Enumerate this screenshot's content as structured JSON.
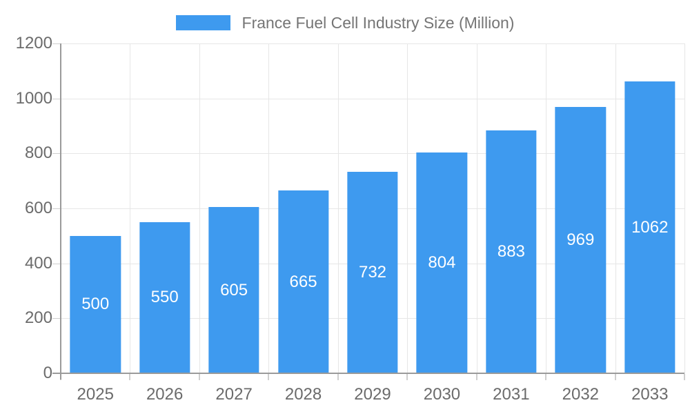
{
  "chart_data": {
    "type": "bar",
    "title": "France Fuel Cell Industry Size (Million)",
    "categories": [
      "2025",
      "2026",
      "2027",
      "2028",
      "2029",
      "2030",
      "2031",
      "2032",
      "2033"
    ],
    "values": [
      500,
      550,
      605,
      665,
      732,
      804,
      883,
      969,
      1062
    ],
    "xlabel": "",
    "ylabel": "",
    "ylim": [
      0,
      1200
    ],
    "yticks": [
      0,
      200,
      400,
      600,
      800,
      1000,
      1200
    ],
    "grid": true,
    "legend_position": "top",
    "value_labels": "inside-center",
    "bar_width_fraction": 0.73
  },
  "colors": {
    "bar": "#3E9AEF",
    "grid": "#E6E6E6",
    "axis": "#9A9A9A",
    "tick": "#CFCFCF",
    "axis_text": "#6B6B6B",
    "legend_text": "#757575",
    "value_text": "#FFFFFF",
    "background": "#FFFFFF"
  }
}
